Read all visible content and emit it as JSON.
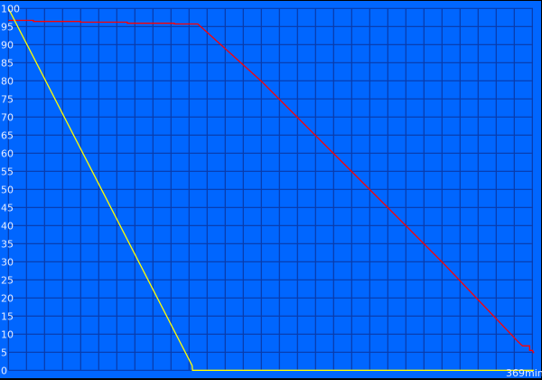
{
  "chart_data": {
    "type": "line",
    "title": "",
    "xlabel": "",
    "ylabel": "",
    "xlim": [
      0,
      369
    ],
    "ylim": [
      0,
      100
    ],
    "x_end_label": "369min",
    "y_ticks": [
      0,
      5,
      10,
      15,
      20,
      25,
      30,
      35,
      40,
      45,
      50,
      55,
      60,
      65,
      70,
      75,
      80,
      85,
      90,
      95,
      100
    ],
    "grid": true,
    "colors": {
      "background": "#0066ff",
      "grid": "#0a3aa8",
      "text": "#e6ecff"
    },
    "series": [
      {
        "color": "#ff0000",
        "points": [
          [
            0,
            96.7
          ],
          [
            17.6,
            96.7
          ],
          [
            17.6,
            96.4
          ],
          [
            50.6,
            96.4
          ],
          [
            50.6,
            96.2
          ],
          [
            83.5,
            96.2
          ],
          [
            83.5,
            95.9
          ],
          [
            116.5,
            95.9
          ],
          [
            116.5,
            95.7
          ],
          [
            133,
            95.7
          ],
          [
            178,
            79.75
          ],
          [
            216,
            64.75
          ],
          [
            267,
            44.75
          ],
          [
            305,
            29.75
          ],
          [
            357.7,
            8.0
          ],
          [
            361,
            6.75
          ],
          [
            366,
            6.75
          ],
          [
            366,
            5.5
          ],
          [
            368,
            5.5
          ],
          [
            369,
            4.75
          ]
        ]
      },
      {
        "color": "#ffff00",
        "points": [
          [
            0,
            100
          ],
          [
            129,
            1.3
          ],
          [
            129.3,
            0
          ],
          [
            369,
            0
          ]
        ]
      }
    ]
  }
}
